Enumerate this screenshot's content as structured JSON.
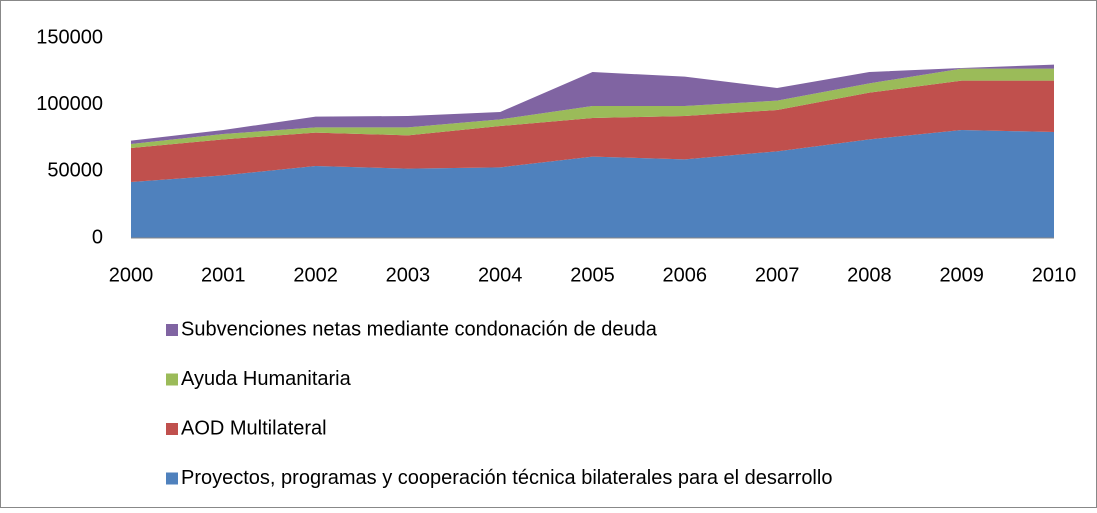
{
  "chart_data": {
    "type": "area",
    "stacked": true,
    "categories": [
      "2000",
      "2001",
      "2002",
      "2003",
      "2004",
      "2005",
      "2006",
      "2007",
      "2008",
      "2009",
      "2010"
    ],
    "series": [
      {
        "name": "Proyectos, programas y cooperación técnica bilaterales para el desarrollo",
        "color": "#4f81bd",
        "values": [
          42000,
          47000,
          54000,
          52000,
          53000,
          61000,
          59000,
          65000,
          74000,
          81000,
          79500
        ]
      },
      {
        "name": "AOD Multilateral",
        "color": "#c0504d",
        "values": [
          25500,
          27000,
          25000,
          25000,
          31000,
          29000,
          32500,
          31000,
          35000,
          37000,
          38500
        ]
      },
      {
        "name": "Ayuda Humanitaria",
        "color": "#9bbb59",
        "values": [
          3000,
          4000,
          4000,
          6000,
          5000,
          9000,
          7500,
          7000,
          7000,
          9000,
          9000
        ]
      },
      {
        "name": "Subvenciones netas mediante condonación de deuda",
        "color": "#8064a2",
        "values": [
          2500,
          3000,
          8000,
          8500,
          5500,
          25500,
          22000,
          9500,
          8500,
          500,
          3000
        ]
      }
    ],
    "ylim": [
      0,
      150000
    ],
    "yticks": [
      0,
      50000,
      100000,
      150000
    ],
    "grid": false,
    "legend": "bottom"
  }
}
